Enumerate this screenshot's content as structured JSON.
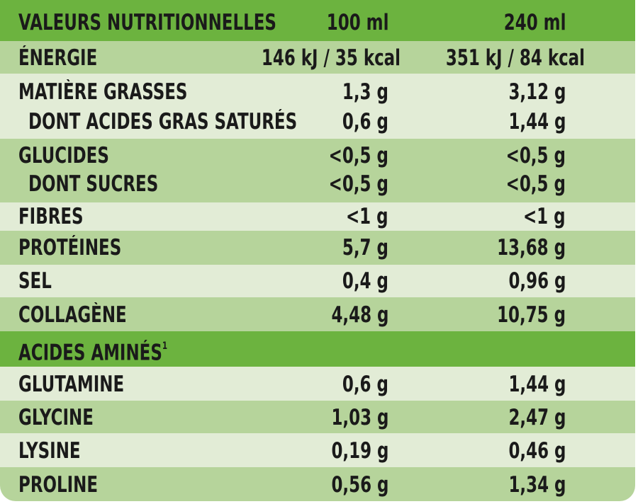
{
  "colors": {
    "dark_green": "#6cb33f",
    "light_green": "#e2ecd6",
    "mid_green": "#b6d49b"
  },
  "header": {
    "title": "VALEURS NUTRITIONNELLES",
    "col_100": "100 ml",
    "col_240": "240 ml"
  },
  "energy": {
    "label": "ÉNERGIE",
    "v100": "146 kJ / 35 kcal",
    "v240": "351 kJ / 84 kcal"
  },
  "fat": {
    "label": "MATIÈRE GRASSES",
    "v100": "1,3 g",
    "v240": "3,12 g",
    "sub_label": "DONT ACIDES GRAS SATURÉS",
    "sub_v100": "0,6 g",
    "sub_v240": "1,44 g"
  },
  "carbs": {
    "label": "GLUCIDES",
    "v100": "<0,5 g",
    "v240": "<0,5 g",
    "sub_label": "DONT SUCRES",
    "sub_v100": "<0,5 g",
    "sub_v240": "<0,5 g"
  },
  "fibres": {
    "label": "FIBRES",
    "v100": "<1 g",
    "v240": "<1 g"
  },
  "proteins": {
    "label": "PROTÉINES",
    "v100": "5,7 g",
    "v240": "13,68 g"
  },
  "salt": {
    "label": "SEL",
    "v100": "0,4 g",
    "v240": "0,96 g"
  },
  "collagen": {
    "label": "COLLAGÈNE",
    "v100": "4,48 g",
    "v240": "10,75 g"
  },
  "amino": {
    "title": "ACIDES AMINÉS",
    "footnote": "1"
  },
  "glutamine": {
    "label": "GLUTAMINE",
    "v100": "0,6 g",
    "v240": "1,44 g"
  },
  "glycine": {
    "label": "GLYCINE",
    "v100": "1,03 g",
    "v240": "2,47 g"
  },
  "lysine": {
    "label": "LYSINE",
    "v100": "0,19 g",
    "v240": "0,46 g"
  },
  "proline": {
    "label": "PROLINE",
    "v100": "0,56 g",
    "v240": "1,34 g"
  }
}
